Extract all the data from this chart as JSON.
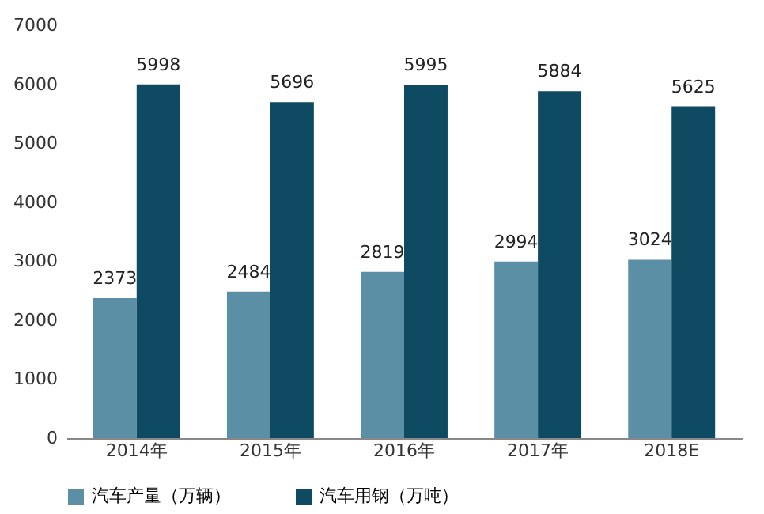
{
  "chart_data": {
    "type": "bar",
    "categories": [
      "2014年",
      "2015年",
      "2016年",
      "2017年",
      "2018E"
    ],
    "series": [
      {
        "name": "汽车产量（万辆）",
        "color": "#5b8fa6",
        "values": [
          2373,
          2484,
          2819,
          2994,
          3024
        ]
      },
      {
        "name": "汽车用钢（万吨）",
        "color": "#0e4a61",
        "values": [
          5998,
          5696,
          5995,
          5884,
          5625
        ]
      }
    ],
    "ylim": [
      0,
      7000
    ],
    "yticks": [
      0,
      1000,
      2000,
      3000,
      4000,
      5000,
      6000,
      7000
    ],
    "grid": false,
    "legend": "bottom",
    "data_labels": true
  }
}
